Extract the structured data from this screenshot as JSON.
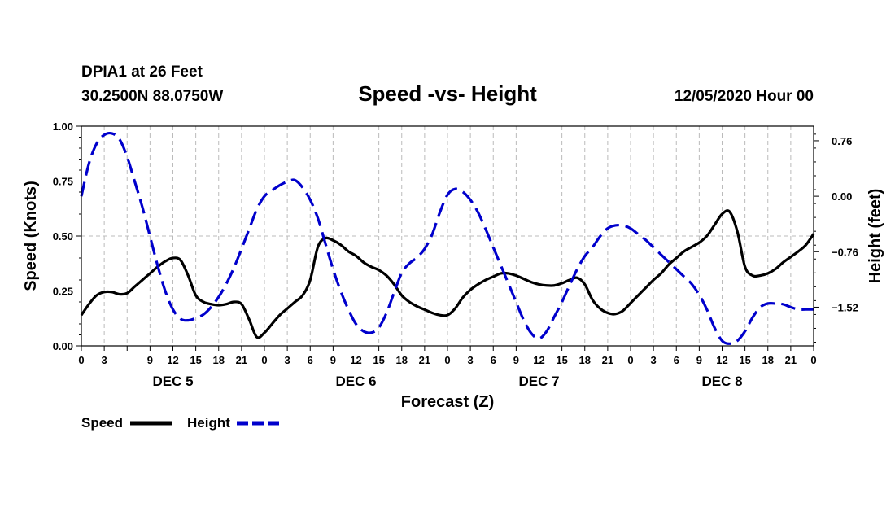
{
  "chart_data": {
    "type": "line",
    "station": "DPIA1 at 26 Feet",
    "location": "30.2500N 88.0750W",
    "title": "Speed -vs- Height",
    "date_label": "12/05/2020 Hour 00",
    "xlabel": "Forecast (Z)",
    "ylabel_left": "Speed (Knots)",
    "ylabel_right": "Height (feet)",
    "grid": true,
    "legend_position": "bottom-left",
    "xlim": [
      0,
      96
    ],
    "ylim_left": [
      0,
      1
    ],
    "ylim_right": [
      -2.05,
      0.96
    ],
    "x_tick_labels": [
      "0",
      "3",
      "9",
      "12",
      "15",
      "18",
      "21",
      "0",
      "3",
      "6",
      "9",
      "12",
      "15",
      "18",
      "21",
      "0",
      "3",
      "6",
      "9",
      "12",
      "15",
      "18",
      "21",
      "0",
      "3",
      "6",
      "9",
      "12",
      "15",
      "18",
      "21",
      "0"
    ],
    "y_left_ticks": [
      "0.00",
      "0.25",
      "0.50",
      "0.75",
      "1.00"
    ],
    "y_left_tick_values": [
      0,
      0.25,
      0.5,
      0.75,
      1.0
    ],
    "y_right_ticks": [
      "0.76",
      "0.00",
      "−0.76",
      "−1.52"
    ],
    "y_right_tick_values": [
      0.76,
      0,
      -0.76,
      -1.52
    ],
    "date_labels": [
      "DEC 5",
      "DEC 6",
      "DEC 7",
      "DEC 8"
    ],
    "date_label_hours": [
      12,
      36,
      60,
      84
    ],
    "colors": {
      "speed": "#000000",
      "height": "#0000cc",
      "grid": "#bbbbbb"
    },
    "series": [
      {
        "name": "Speed",
        "axis": "left",
        "style": "solid",
        "x": [
          0,
          1,
          2,
          3,
          4,
          5,
          6,
          7,
          8,
          9,
          10,
          11,
          12,
          13,
          14,
          15,
          16,
          17,
          18,
          19,
          20,
          21,
          22,
          23,
          24,
          25,
          26,
          27,
          28,
          29,
          30,
          31,
          32,
          33,
          34,
          35,
          36,
          37,
          38,
          39,
          40,
          41,
          42,
          43,
          44,
          45,
          46,
          47,
          48,
          49,
          50,
          51,
          52,
          53,
          54,
          55,
          56,
          57,
          58,
          59,
          60,
          61,
          62,
          63,
          64,
          65,
          66,
          67,
          68,
          69,
          70,
          71,
          72,
          73,
          74,
          75,
          76,
          77,
          78,
          79,
          80,
          81,
          82,
          83,
          84,
          85,
          86,
          87,
          88,
          89,
          90,
          91,
          92,
          93,
          94,
          95,
          96
        ],
        "values": [
          0.14,
          0.19,
          0.23,
          0.245,
          0.245,
          0.235,
          0.24,
          0.27,
          0.3,
          0.33,
          0.36,
          0.385,
          0.4,
          0.39,
          0.32,
          0.23,
          0.2,
          0.19,
          0.185,
          0.19,
          0.2,
          0.19,
          0.12,
          0.04,
          0.06,
          0.1,
          0.14,
          0.17,
          0.2,
          0.23,
          0.3,
          0.45,
          0.49,
          0.48,
          0.46,
          0.43,
          0.41,
          0.38,
          0.36,
          0.345,
          0.32,
          0.28,
          0.23,
          0.2,
          0.18,
          0.165,
          0.15,
          0.14,
          0.14,
          0.17,
          0.22,
          0.255,
          0.28,
          0.3,
          0.315,
          0.33,
          0.33,
          0.32,
          0.305,
          0.29,
          0.28,
          0.275,
          0.275,
          0.285,
          0.3,
          0.31,
          0.28,
          0.21,
          0.17,
          0.15,
          0.145,
          0.16,
          0.195,
          0.23,
          0.265,
          0.3,
          0.33,
          0.37,
          0.4,
          0.43,
          0.45,
          0.47,
          0.5,
          0.55,
          0.6,
          0.61,
          0.52,
          0.36,
          0.32,
          0.32,
          0.33,
          0.35,
          0.38,
          0.405,
          0.43,
          0.46,
          0.51
        ]
      },
      {
        "name": "Height",
        "axis": "right",
        "style": "dashed",
        "x": [
          0,
          1,
          2,
          3,
          4,
          5,
          6,
          7,
          8,
          9,
          10,
          11,
          12,
          13,
          14,
          15,
          16,
          17,
          18,
          19,
          20,
          21,
          22,
          23,
          24,
          25,
          26,
          27,
          28,
          29,
          30,
          31,
          32,
          33,
          34,
          35,
          36,
          37,
          38,
          39,
          40,
          41,
          42,
          43,
          44,
          45,
          46,
          47,
          48,
          49,
          50,
          51,
          52,
          53,
          54,
          55,
          56,
          57,
          58,
          59,
          60,
          61,
          62,
          63,
          64,
          65,
          66,
          67,
          68,
          69,
          70,
          71,
          72,
          73,
          74,
          75,
          76,
          77,
          78,
          79,
          80,
          81,
          82,
          83,
          84,
          85,
          86,
          87,
          88,
          89,
          90,
          91,
          92,
          93,
          94,
          95,
          96
        ],
        "values": [
          0.0,
          0.45,
          0.72,
          0.84,
          0.86,
          0.78,
          0.54,
          0.2,
          -0.15,
          -0.55,
          -0.95,
          -1.3,
          -1.55,
          -1.68,
          -1.7,
          -1.67,
          -1.62,
          -1.52,
          -1.38,
          -1.2,
          -0.98,
          -0.72,
          -0.45,
          -0.18,
          0.0,
          0.08,
          0.15,
          0.2,
          0.22,
          0.12,
          -0.05,
          -0.3,
          -0.65,
          -1.0,
          -1.3,
          -1.55,
          -1.75,
          -1.85,
          -1.87,
          -1.8,
          -1.6,
          -1.32,
          -1.05,
          -0.92,
          -0.84,
          -0.72,
          -0.52,
          -0.22,
          0.02,
          0.1,
          0.06,
          -0.05,
          -0.22,
          -0.45,
          -0.7,
          -0.95,
          -1.2,
          -1.45,
          -1.7,
          -1.88,
          -1.95,
          -1.85,
          -1.65,
          -1.45,
          -1.22,
          -1.0,
          -0.82,
          -0.7,
          -0.55,
          -0.44,
          -0.4,
          -0.4,
          -0.44,
          -0.52,
          -0.6,
          -0.7,
          -0.8,
          -0.9,
          -1.0,
          -1.1,
          -1.2,
          -1.35,
          -1.55,
          -1.8,
          -1.98,
          -2.02,
          -1.98,
          -1.85,
          -1.66,
          -1.52,
          -1.47,
          -1.47,
          -1.48,
          -1.52,
          -1.55,
          -1.55,
          -1.55
        ]
      }
    ]
  }
}
